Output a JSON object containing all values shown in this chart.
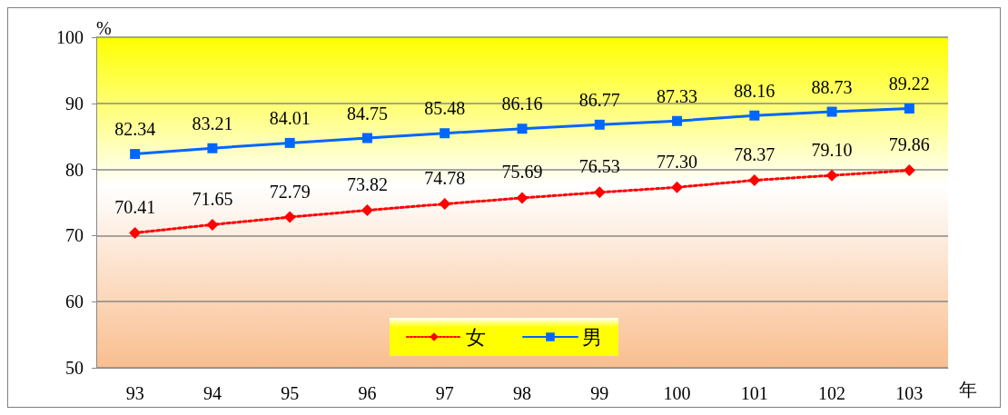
{
  "chart_data": {
    "type": "line",
    "xlabel": "年",
    "ylabel": "%",
    "categories": [
      "93",
      "94",
      "95",
      "96",
      "97",
      "98",
      "99",
      "100",
      "101",
      "102",
      "103"
    ],
    "series": [
      {
        "name": "女",
        "color": "#ff0000",
        "marker": "diamond",
        "line_style": "dotted",
        "values": [
          70.41,
          71.65,
          72.79,
          73.82,
          74.78,
          75.69,
          76.53,
          77.3,
          78.37,
          79.1,
          79.86
        ],
        "value_labels": [
          "70.41",
          "71.65",
          "72.79",
          "73.82",
          "74.78",
          "75.69",
          "76.53",
          "77.30",
          "78.37",
          "79.10",
          "79.86"
        ]
      },
      {
        "name": "男",
        "color": "#0066ff",
        "marker": "square",
        "line_style": "solid",
        "values": [
          82.34,
          83.21,
          84.01,
          84.75,
          85.48,
          86.16,
          86.77,
          87.33,
          88.16,
          88.73,
          89.22
        ],
        "value_labels": [
          "82.34",
          "83.21",
          "84.01",
          "84.75",
          "85.48",
          "86.16",
          "86.77",
          "87.33",
          "88.16",
          "88.73",
          "89.22"
        ]
      }
    ],
    "ylim": [
      50,
      100
    ],
    "yticks": [
      50,
      60,
      70,
      80,
      90,
      100
    ],
    "grid": "y",
    "legend": "bottom"
  }
}
